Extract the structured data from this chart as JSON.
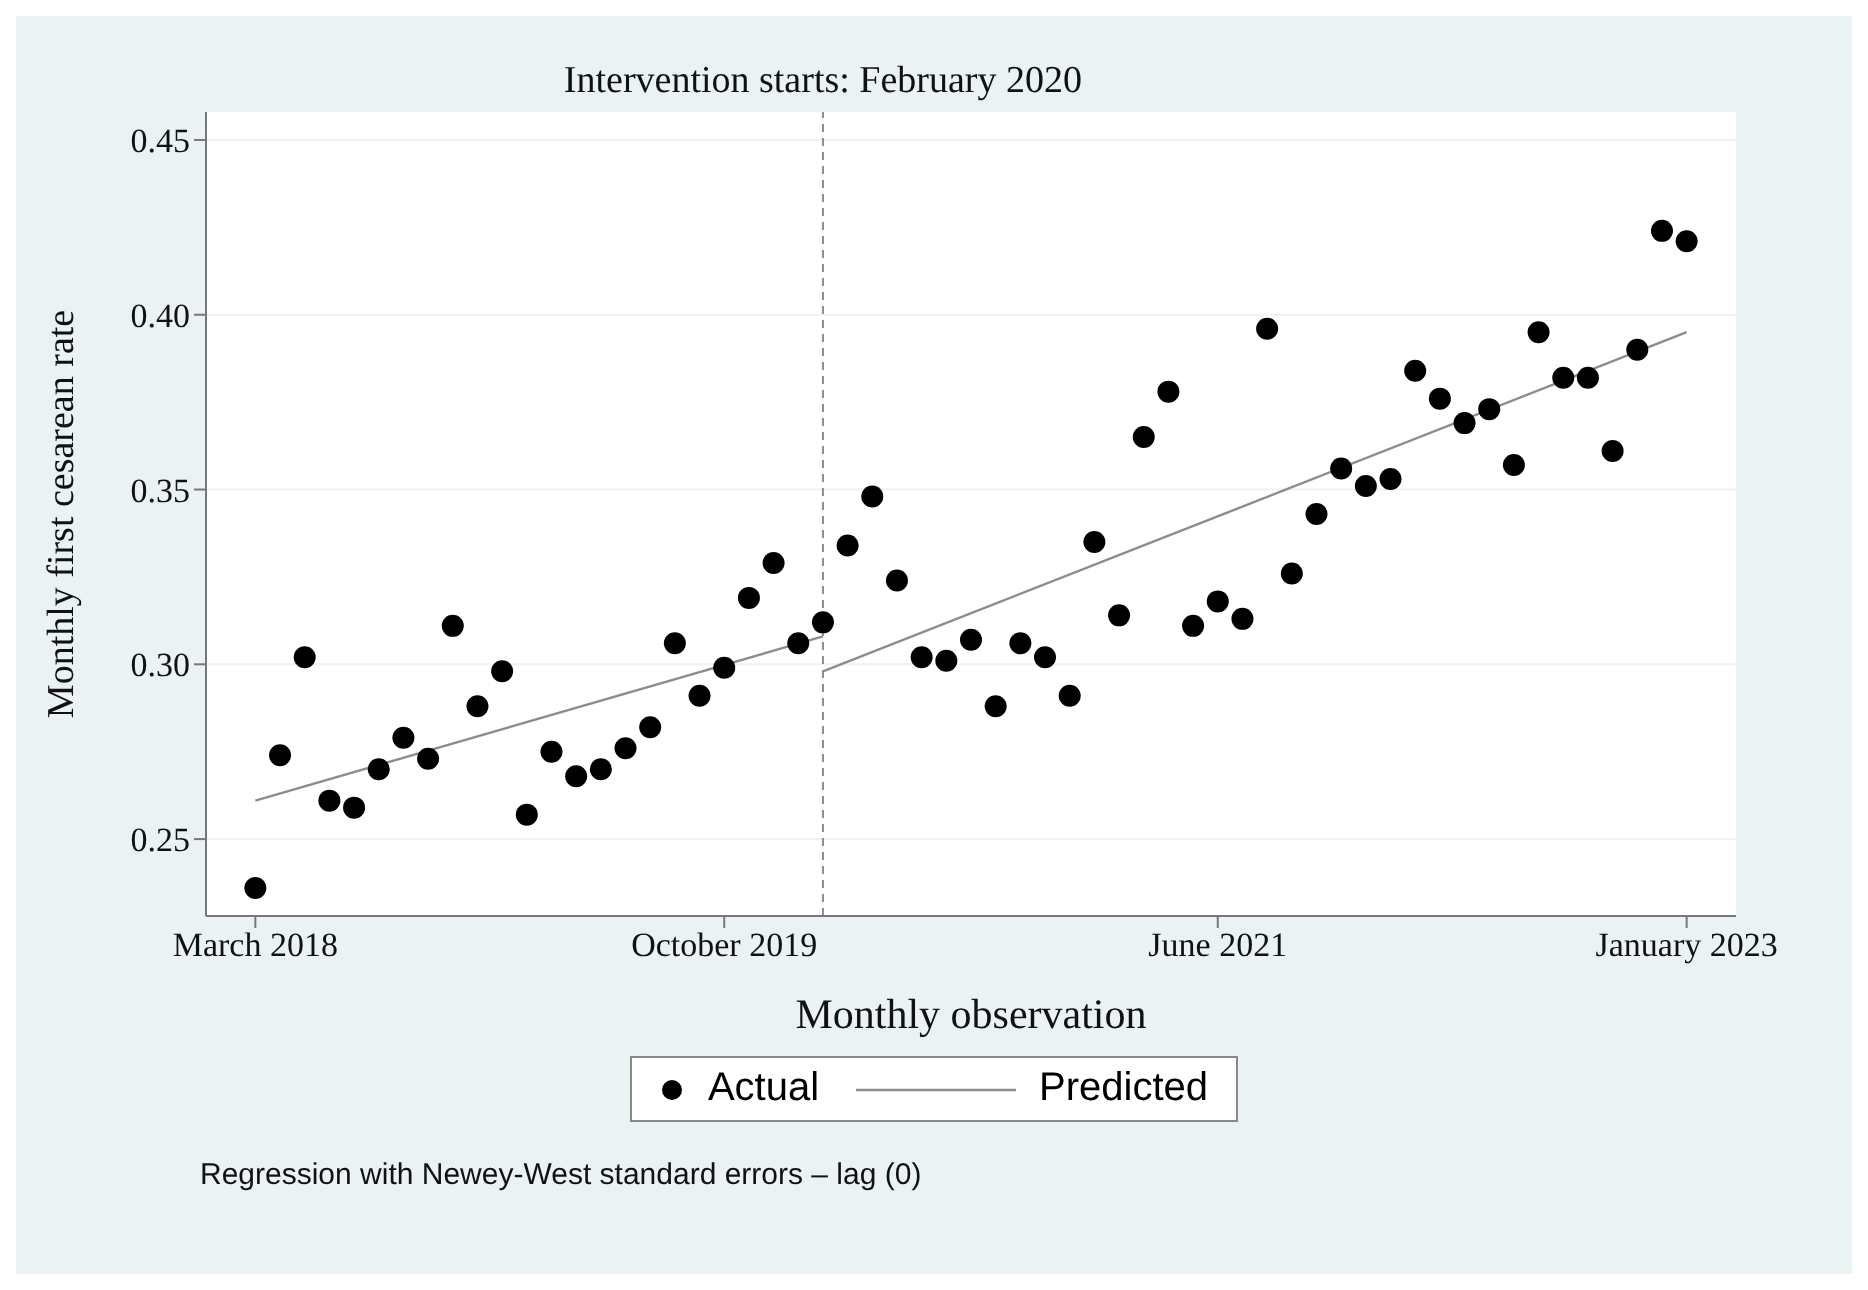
{
  "chart_data": {
    "type": "scatter",
    "xlabel": "Monthly observation",
    "ylabel": "Monthly first cesarean rate",
    "x": [
      "2018-03",
      "2018-04",
      "2018-05",
      "2018-06",
      "2018-07",
      "2018-08",
      "2018-09",
      "2018-10",
      "2018-11",
      "2018-12",
      "2019-01",
      "2019-02",
      "2019-03",
      "2019-04",
      "2019-05",
      "2019-06",
      "2019-07",
      "2019-08",
      "2019-09",
      "2019-10",
      "2019-11",
      "2019-12",
      "2020-01",
      "2020-02",
      "2020-03",
      "2020-04",
      "2020-05",
      "2020-06",
      "2020-07",
      "2020-08",
      "2020-09",
      "2020-10",
      "2020-11",
      "2020-12",
      "2021-01",
      "2021-02",
      "2021-03",
      "2021-04",
      "2021-05",
      "2021-06",
      "2021-07",
      "2021-08",
      "2021-09",
      "2021-10",
      "2021-11",
      "2021-12",
      "2022-01",
      "2022-02",
      "2022-03",
      "2022-04",
      "2022-05",
      "2022-06",
      "2022-07",
      "2022-08",
      "2022-09",
      "2022-10",
      "2022-11",
      "2022-12",
      "2023-01"
    ],
    "series": [
      {
        "name": "Actual",
        "marker": "circle",
        "color": "#000000",
        "values": [
          0.236,
          0.274,
          0.302,
          0.261,
          0.259,
          0.27,
          0.279,
          0.273,
          0.311,
          0.288,
          0.298,
          0.257,
          0.275,
          0.268,
          0.27,
          0.276,
          0.282,
          0.306,
          0.291,
          0.299,
          0.319,
          0.329,
          0.306,
          0.312,
          0.334,
          0.348,
          0.324,
          0.302,
          0.301,
          0.307,
          0.288,
          0.306,
          0.302,
          0.291,
          0.335,
          0.314,
          0.365,
          0.378,
          0.311,
          0.318,
          0.313,
          0.396,
          0.326,
          0.343,
          0.356,
          0.351,
          0.353,
          0.384,
          0.376,
          0.369,
          0.373,
          0.357,
          0.395,
          0.382,
          0.382,
          0.361,
          0.39,
          0.424,
          0.421
        ]
      },
      {
        "name": "Predicted",
        "type": "line",
        "color": "#8c8c8c",
        "x": [
          "2018-03",
          "2020-02"
        ],
        "values": [
          0.261,
          0.308
        ]
      },
      {
        "type": "line",
        "color": "#8c8c8c",
        "x": [
          "2020-02",
          "2023-01"
        ],
        "values": [
          0.298,
          0.395
        ]
      }
    ],
    "xlim": [
      "2018-01",
      "2023-03"
    ],
    "xticks": [
      {
        "value": "2018-03",
        "label": "March 2018"
      },
      {
        "value": "2019-10",
        "label": "October 2019"
      },
      {
        "value": "2021-06",
        "label": "June 2021"
      },
      {
        "value": "2023-01",
        "label": "January 2023"
      }
    ],
    "ylim": [
      0.228,
      0.458
    ],
    "yticks": [
      0.25,
      {
        "value": 0.3,
        "label": "0.30"
      },
      0.35,
      {
        "value": 0.4,
        "label": "0.40"
      },
      0.45
    ],
    "ref_lines": [
      {
        "axis": "x",
        "value": "2020-02",
        "label": "Intervention starts: February 2020",
        "color": "#8c8c8c",
        "line_style": "dashed"
      }
    ],
    "grid": "y",
    "legend": "bottom",
    "annotations": [
      "Regression with Newey-West standard errors – lag (0)"
    ]
  }
}
